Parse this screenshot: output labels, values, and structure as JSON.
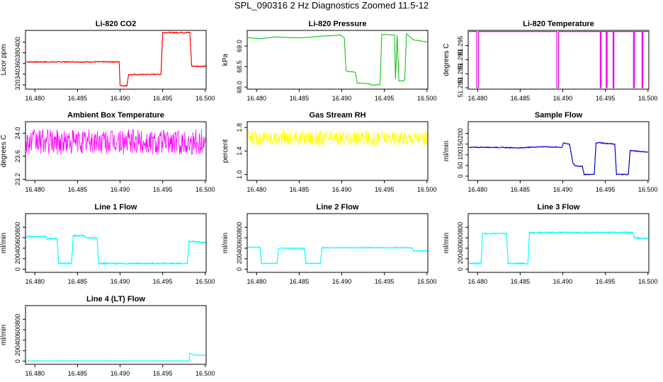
{
  "page": {
    "title": "SPL_090316  2 Hz Diagnostics Zoomed 11.5-12"
  },
  "chart_data": [
    {
      "id": "co2",
      "type": "line",
      "title": "Li-820 CO2",
      "ylabel": "Licor ppm",
      "color": "#ff0000",
      "xlim": [
        16.4789,
        16.5001
      ],
      "ylim": [
        312,
        422
      ],
      "yticks": [
        320,
        340,
        360,
        380,
        400
      ],
      "noise": 1,
      "linewidth": 1.2,
      "x": [
        16.479,
        16.4899,
        16.49,
        16.4908,
        16.491,
        16.4948,
        16.495,
        16.4982,
        16.4984,
        16.5
      ],
      "y": [
        363,
        363,
        319,
        318,
        339,
        340,
        418,
        418,
        355,
        355
      ]
    },
    {
      "id": "pressure",
      "type": "line",
      "title": "Li-820 Pressure",
      "ylabel": "kPa",
      "color": "#00bb00",
      "xlim": [
        16.4789,
        16.5001
      ],
      "ylim": [
        67.95,
        69.38
      ],
      "yticks": [
        68.0,
        68.5,
        69.0
      ],
      "ytick_decimals": 1,
      "noise": 0.003,
      "linewidth": 1,
      "x": [
        16.479,
        16.4805,
        16.4822,
        16.4848,
        16.486,
        16.4875,
        16.4888,
        16.4898,
        16.4903,
        16.4905,
        16.4908,
        16.4916,
        16.4918,
        16.4933,
        16.4934,
        16.4938,
        16.4945,
        16.4947,
        16.4962,
        16.4963,
        16.4965,
        16.4967,
        16.4973,
        16.4974,
        16.4976,
        16.4984,
        16.5
      ],
      "y": [
        69.2,
        69.18,
        69.22,
        69.2,
        69.21,
        69.24,
        69.25,
        69.27,
        69.2,
        68.4,
        68.38,
        68.36,
        68.1,
        68.08,
        68.05,
        68.05,
        68.06,
        69.28,
        69.27,
        68.2,
        69.25,
        68.15,
        68.15,
        68.2,
        69.3,
        69.15,
        69.1
      ]
    },
    {
      "id": "licor_temp",
      "type": "line",
      "title": "Li-820 Temperature",
      "ylabel": "degrees C",
      "color": "#ee00ee",
      "xlim": [
        16.4789,
        16.5001
      ],
      "ylim": [
        51.2795,
        51.3004
      ],
      "yticks": [
        51.28,
        51.285,
        51.29,
        51.295
      ],
      "ytick_decimals": 3,
      "noise": 0,
      "linewidth": 1.2,
      "x": [
        16.479,
        16.4799,
        16.4799,
        16.4801,
        16.4801,
        16.4893,
        16.4893,
        16.4895,
        16.4895,
        16.4944,
        16.4944,
        16.4945,
        16.4945,
        16.4951,
        16.4951,
        16.4952,
        16.4952,
        16.4959,
        16.4959,
        16.496,
        16.496,
        16.4983,
        16.4983,
        16.4984,
        16.4984,
        16.4993,
        16.4993,
        16.4994,
        16.4994,
        16.5
      ],
      "y": [
        51.3,
        51.3,
        51.28,
        51.28,
        51.3,
        51.3,
        51.28,
        51.28,
        51.3,
        51.3,
        51.28,
        51.28,
        51.3,
        51.3,
        51.28,
        51.28,
        51.3,
        51.3,
        51.28,
        51.28,
        51.3,
        51.3,
        51.28,
        51.28,
        51.3,
        51.3,
        51.28,
        51.28,
        51.3,
        51.3
      ]
    },
    {
      "id": "box_temp",
      "type": "line",
      "title": "Ambient Box Temperature",
      "ylabel": "degrees C",
      "color": "#ff00ff",
      "xlim": [
        16.4789,
        16.5001
      ],
      "ylim": [
        23.18,
        24.2
      ],
      "yticks": [
        23.2,
        23.6,
        24.0
      ],
      "ytick_decimals": 1,
      "noise": 0.22,
      "linewidth": 0.8,
      "x": [
        16.479,
        16.5
      ],
      "y": [
        23.85,
        23.85
      ]
    },
    {
      "id": "rh",
      "type": "line",
      "title": "Gas Stream RH",
      "ylabel": "percent",
      "color": "#ffff00",
      "xlim": [
        16.4789,
        16.5001
      ],
      "ylim": [
        0.9,
        1.9
      ],
      "yticks": [
        1.0,
        1.4,
        1.8
      ],
      "ytick_decimals": 1,
      "noise": 0.13,
      "linewidth": 0.8,
      "x": [
        16.479,
        16.5
      ],
      "y": [
        1.62,
        1.62
      ]
    },
    {
      "id": "sample_flow",
      "type": "line",
      "title": "Sample Flow",
      "ylabel": "ml/min",
      "color": "#0000cc",
      "xlim": [
        16.4789,
        16.5001
      ],
      "ylim": [
        -20,
        255
      ],
      "yticks": [
        0,
        50,
        100,
        150,
        200
      ],
      "noise": 2,
      "linewidth": 1.2,
      "x": [
        16.479,
        16.482,
        16.485,
        16.4875,
        16.4899,
        16.4901,
        16.4908,
        16.4912,
        16.4914,
        16.4923,
        16.4925,
        16.4937,
        16.4939,
        16.4943,
        16.4945,
        16.4961,
        16.4963,
        16.4977,
        16.4979,
        16.5
      ],
      "y": [
        135,
        135,
        132,
        138,
        135,
        155,
        150,
        60,
        50,
        45,
        8,
        8,
        155,
        158,
        155,
        150,
        8,
        8,
        120,
        112
      ]
    },
    {
      "id": "line1",
      "type": "line",
      "title": "Line 1 Flow",
      "ylabel": "ml/min",
      "color": "#00ffff",
      "xlim": [
        16.4789,
        16.5001
      ],
      "ylim": [
        -60,
        1060
      ],
      "yticks": [
        0,
        200,
        400,
        600,
        800
      ],
      "noise": 14,
      "linewidth": 1.2,
      "x": [
        16.479,
        16.4812,
        16.4813,
        16.4826,
        16.4828,
        16.4843,
        16.4845,
        16.4858,
        16.4859,
        16.4873,
        16.4875,
        16.4979,
        16.4981,
        16.5
      ],
      "y": [
        620,
        620,
        580,
        580,
        110,
        110,
        640,
        640,
        600,
        600,
        110,
        110,
        530,
        510
      ]
    },
    {
      "id": "line2",
      "type": "line",
      "title": "Line 2 Flow",
      "ylabel": "ml/min",
      "color": "#00ffff",
      "xlim": [
        16.4789,
        16.5001
      ],
      "ylim": [
        -60,
        1060
      ],
      "yticks": [
        0,
        200,
        400,
        600,
        800
      ],
      "noise": 8,
      "linewidth": 1.2,
      "x": [
        16.479,
        16.4804,
        16.4806,
        16.4824,
        16.4826,
        16.4856,
        16.4858,
        16.4875,
        16.4877,
        16.4982,
        16.4984,
        16.5
      ],
      "y": [
        420,
        420,
        110,
        110,
        400,
        400,
        110,
        110,
        410,
        410,
        350,
        350
      ]
    },
    {
      "id": "line3",
      "type": "line",
      "title": "Line 3 Flow",
      "ylabel": "ml/min",
      "color": "#00ffff",
      "xlim": [
        16.4789,
        16.5001
      ],
      "ylim": [
        -60,
        1060
      ],
      "yticks": [
        0,
        200,
        400,
        600,
        800
      ],
      "noise": 14,
      "linewidth": 1.2,
      "x": [
        16.479,
        16.4804,
        16.4806,
        16.4834,
        16.4836,
        16.4859,
        16.4861,
        16.4982,
        16.4984,
        16.5
      ],
      "y": [
        110,
        110,
        680,
        680,
        110,
        110,
        700,
        700,
        600,
        580
      ]
    },
    {
      "id": "line4",
      "type": "line",
      "title": "Line 4 (LT) Flow",
      "ylabel": "ml/min",
      "color": "#00ffff",
      "xlim": [
        16.4789,
        16.5001
      ],
      "ylim": [
        -60,
        1060
      ],
      "yticks": [
        0,
        200,
        400,
        600,
        800
      ],
      "noise": 2,
      "linewidth": 1.2,
      "x": [
        16.479,
        16.4981,
        16.4982,
        16.4985,
        16.4988,
        16.5
      ],
      "y": [
        5,
        5,
        150,
        130,
        115,
        110
      ]
    }
  ],
  "x_axis": {
    "ticks": [
      16.48,
      16.485,
      16.49,
      16.495,
      16.5
    ]
  }
}
